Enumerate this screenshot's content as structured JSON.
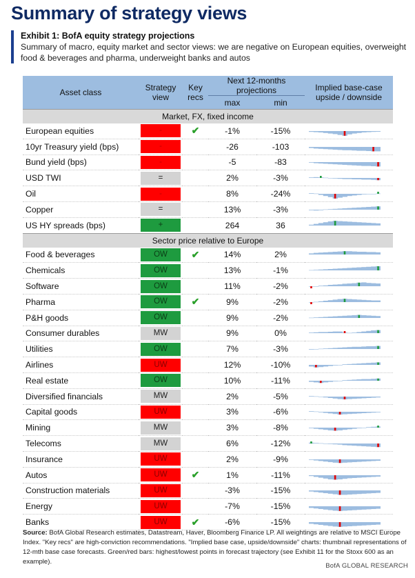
{
  "title": "Summary of strategy views",
  "exhibit": {
    "title": "Exhibit 1: BofA equity strategy projections",
    "subtitle": "Summary of macro, equity market and sector views: we are negative on European equities, overweight food & beverages and pharma, underweight banks and autos"
  },
  "headers": {
    "asset": "Asset class",
    "view": "Strategy view",
    "key": "Key recs",
    "proj": "Next 12-months projections",
    "max": "max",
    "min": "min",
    "chart": "Implied base-case upside / downside"
  },
  "sections": [
    {
      "label": "Market, FX, fixed income",
      "rows": [
        {
          "asset": "European equities",
          "view": "-",
          "view_color": "red",
          "key": true,
          "max": "-1%",
          "min": "-15%",
          "spark": {
            "vals": [
              -0.15,
              -0.2,
              -0.25,
              -0.35,
              -0.45,
              -0.55,
              -0.7,
              -0.85,
              -0.6,
              -0.45,
              -0.35,
              -0.25,
              -0.2,
              -0.15,
              -0.12
            ],
            "mark": 7,
            "mark_color": "red"
          }
        },
        {
          "asset": "10yr Treasury yield (bps)",
          "view": "-",
          "view_color": "red",
          "key": false,
          "max": "-26",
          "min": "-103",
          "spark": {
            "vals": [
              -0.2,
              -0.3,
              -0.35,
              -0.4,
              -0.45,
              -0.5,
              -0.55,
              -0.6,
              -0.6,
              -0.65,
              -0.7,
              -0.7,
              -0.75,
              -0.8,
              -0.8
            ],
            "mark": 13,
            "mark_color": "red"
          }
        },
        {
          "asset": "Bund yield (bps)",
          "view": "-",
          "view_color": "red",
          "key": false,
          "max": "-5",
          "min": "-83",
          "spark": {
            "vals": [
              -0.1,
              -0.2,
              -0.25,
              -0.3,
              -0.35,
              -0.4,
              -0.45,
              -0.5,
              -0.55,
              -0.6,
              -0.65,
              -0.7,
              -0.7,
              -0.75,
              -0.8
            ],
            "mark": 14,
            "mark_color": "red"
          }
        },
        {
          "asset": "USD TWI",
          "view": "=",
          "view_color": "grey",
          "key": false,
          "max": "2%",
          "min": "-3%",
          "spark": {
            "vals": [
              0.1,
              0.15,
              0.1,
              0.05,
              -0.05,
              -0.1,
              -0.15,
              -0.2,
              -0.2,
              -0.25,
              -0.25,
              -0.3,
              -0.3,
              -0.35,
              -0.4
            ],
            "mark": 14,
            "mark_color": "red",
            "mark2": 2,
            "mark2_color": "green"
          }
        },
        {
          "asset": "Oil",
          "view": "-",
          "view_color": "red",
          "key": false,
          "max": "8%",
          "min": "-24%",
          "spark": {
            "vals": [
              0.1,
              0.05,
              -0.2,
              -0.4,
              -0.6,
              -0.85,
              -0.7,
              -0.55,
              -0.4,
              -0.3,
              -0.2,
              -0.1,
              -0.05,
              0.0,
              0.05
            ],
            "mark": 5,
            "mark_color": "red",
            "mark2": 14,
            "mark2_color": "green"
          }
        },
        {
          "asset": "Copper",
          "view": "=",
          "view_color": "grey",
          "key": false,
          "max": "13%",
          "min": "-3%",
          "spark": {
            "vals": [
              -0.1,
              -0.15,
              -0.1,
              0.05,
              0.1,
              0.15,
              0.2,
              0.25,
              0.3,
              0.35,
              0.4,
              0.45,
              0.5,
              0.55,
              0.6
            ],
            "mark": 14,
            "mark_color": "green"
          }
        },
        {
          "asset": "US HY spreads (bps)",
          "view": "+",
          "view_color": "green",
          "key": false,
          "max": "264",
          "min": "36",
          "spark": {
            "vals": [
              0.15,
              0.3,
              0.45,
              0.6,
              0.75,
              0.85,
              0.8,
              0.75,
              0.7,
              0.65,
              0.6,
              0.55,
              0.5,
              0.45,
              0.4
            ],
            "mark": 5,
            "mark_color": "green"
          }
        }
      ]
    },
    {
      "label": "Sector price relative to Europe",
      "rows": [
        {
          "asset": "Food & beverages",
          "view": "OW",
          "view_color": "green",
          "key": true,
          "max": "14%",
          "min": "2%",
          "spark": {
            "vals": [
              0.2,
              0.3,
              0.35,
              0.4,
              0.45,
              0.5,
              0.55,
              0.6,
              0.6,
              0.55,
              0.5,
              0.5,
              0.45,
              0.45,
              0.4
            ],
            "mark": 7,
            "mark_color": "green"
          }
        },
        {
          "asset": "Chemicals",
          "view": "OW",
          "view_color": "green",
          "key": false,
          "max": "13%",
          "min": "-1%",
          "spark": {
            "vals": [
              0.05,
              0.1,
              0.15,
              0.2,
              0.25,
              0.3,
              0.35,
              0.4,
              0.45,
              0.5,
              0.55,
              0.6,
              0.65,
              0.7,
              0.75
            ],
            "mark": 14,
            "mark_color": "green"
          }
        },
        {
          "asset": "Software",
          "view": "OW",
          "view_color": "green",
          "key": false,
          "max": "11%",
          "min": "-2%",
          "spark": {
            "vals": [
              -0.05,
              0.0,
              0.1,
              0.15,
              0.25,
              0.3,
              0.35,
              0.45,
              0.5,
              0.55,
              0.65,
              0.7,
              0.6,
              0.55,
              0.5
            ],
            "mark": 10,
            "mark_color": "green",
            "mark2": 0,
            "mark2_color": "red"
          }
        },
        {
          "asset": "Pharma",
          "view": "OW",
          "view_color": "green",
          "key": true,
          "max": "9%",
          "min": "-2%",
          "spark": {
            "vals": [
              -0.05,
              0.05,
              0.15,
              0.25,
              0.35,
              0.45,
              0.55,
              0.6,
              0.55,
              0.5,
              0.45,
              0.4,
              0.35,
              0.3,
              0.3
            ],
            "mark": 7,
            "mark_color": "green",
            "mark2": 0,
            "mark2_color": "red"
          }
        },
        {
          "asset": "P&H goods",
          "view": "OW",
          "view_color": "green",
          "key": false,
          "max": "9%",
          "min": "-2%",
          "spark": {
            "vals": [
              0.05,
              0.1,
              0.15,
              0.2,
              0.25,
              0.3,
              0.35,
              0.4,
              0.45,
              0.5,
              0.55,
              0.5,
              0.45,
              0.4,
              0.35
            ],
            "mark": 10,
            "mark_color": "green"
          }
        },
        {
          "asset": "Consumer durables",
          "view": "MW",
          "view_color": "grey",
          "key": false,
          "max": "9%",
          "min": "0%",
          "spark": {
            "vals": [
              0.1,
              0.15,
              0.2,
              0.2,
              0.25,
              0.3,
              0.3,
              0.1,
              0.05,
              0.1,
              0.2,
              0.3,
              0.4,
              0.5,
              0.55
            ],
            "mark": 14,
            "mark_color": "green",
            "mark2": 7,
            "mark2_color": "red"
          }
        },
        {
          "asset": "Utilities",
          "view": "OW",
          "view_color": "green",
          "key": false,
          "max": "7%",
          "min": "-3%",
          "spark": {
            "vals": [
              -0.1,
              -0.05,
              0.05,
              0.1,
              0.15,
              0.2,
              0.25,
              0.3,
              0.35,
              0.4,
              0.4,
              0.45,
              0.5,
              0.5,
              0.55
            ],
            "mark": 14,
            "mark_color": "green"
          }
        },
        {
          "asset": "Airlines",
          "view": "UW",
          "view_color": "red",
          "key": false,
          "max": "12%",
          "min": "-10%",
          "spark": {
            "vals": [
              -0.3,
              -0.45,
              -0.4,
              -0.3,
              -0.2,
              -0.1,
              0.0,
              0.1,
              0.15,
              0.2,
              0.25,
              0.3,
              0.35,
              0.4,
              0.45
            ],
            "mark": 1,
            "mark_color": "red",
            "mark2": 14,
            "mark2_color": "green"
          }
        },
        {
          "asset": "Real estate",
          "view": "OW",
          "view_color": "green",
          "key": false,
          "max": "10%",
          "min": "-11%",
          "spark": {
            "vals": [
              -0.2,
              -0.3,
              -0.4,
              -0.3,
              -0.2,
              -0.1,
              0.0,
              0.1,
              0.15,
              0.2,
              0.25,
              0.3,
              0.3,
              0.35,
              0.4
            ],
            "mark": 2,
            "mark_color": "red",
            "mark2": 14,
            "mark2_color": "green"
          }
        },
        {
          "asset": "Diversified financials",
          "view": "MW",
          "view_color": "grey",
          "key": false,
          "max": "2%",
          "min": "-5%",
          "spark": {
            "vals": [
              0.1,
              0.05,
              -0.05,
              -0.15,
              -0.25,
              -0.35,
              -0.45,
              -0.5,
              -0.45,
              -0.4,
              -0.35,
              -0.3,
              -0.25,
              -0.2,
              -0.15
            ],
            "mark": 7,
            "mark_color": "red"
          }
        },
        {
          "asset": "Capital goods",
          "view": "UW",
          "view_color": "red",
          "key": false,
          "max": "3%",
          "min": "-6%",
          "spark": {
            "vals": [
              0.1,
              0.05,
              -0.1,
              -0.2,
              -0.3,
              -0.4,
              -0.5,
              -0.45,
              -0.4,
              -0.35,
              -0.3,
              -0.25,
              -0.2,
              -0.15,
              -0.1
            ],
            "mark": 6,
            "mark_color": "red"
          }
        },
        {
          "asset": "Mining",
          "view": "MW",
          "view_color": "grey",
          "key": false,
          "max": "3%",
          "min": "-8%",
          "spark": {
            "vals": [
              -0.1,
              -0.2,
              -0.3,
              -0.4,
              -0.5,
              -0.55,
              -0.5,
              -0.4,
              -0.3,
              -0.2,
              -0.1,
              0.0,
              0.1,
              0.15,
              0.2
            ],
            "mark": 5,
            "mark_color": "red",
            "mark2": 14,
            "mark2_color": "green"
          }
        },
        {
          "asset": "Telecoms",
          "view": "MW",
          "view_color": "grey",
          "key": false,
          "max": "6%",
          "min": "-12%",
          "spark": {
            "vals": [
              0.15,
              0.1,
              0.05,
              -0.05,
              -0.1,
              -0.15,
              -0.2,
              -0.3,
              -0.35,
              -0.4,
              -0.45,
              -0.5,
              -0.55,
              -0.6,
              -0.65
            ],
            "mark": 14,
            "mark_color": "red",
            "mark2": 0,
            "mark2_color": "green"
          }
        },
        {
          "asset": "Insurance",
          "view": "UW",
          "view_color": "red",
          "key": false,
          "max": "2%",
          "min": "-9%",
          "spark": {
            "vals": [
              -0.1,
              -0.2,
              -0.3,
              -0.4,
              -0.5,
              -0.6,
              -0.65,
              -0.6,
              -0.55,
              -0.5,
              -0.45,
              -0.4,
              -0.35,
              -0.3,
              -0.25
            ],
            "mark": 6,
            "mark_color": "red"
          }
        },
        {
          "asset": "Autos",
          "view": "UW",
          "view_color": "red",
          "key": true,
          "max": "1%",
          "min": "-11%",
          "spark": {
            "vals": [
              -0.15,
              -0.3,
              -0.45,
              -0.6,
              -0.75,
              -0.8,
              -0.75,
              -0.65,
              -0.55,
              -0.5,
              -0.45,
              -0.4,
              -0.35,
              -0.3,
              -0.25
            ],
            "mark": 5,
            "mark_color": "red"
          }
        },
        {
          "asset": "Construction materials",
          "view": "UW",
          "view_color": "red",
          "key": false,
          "max": "-3%",
          "min": "-15%",
          "spark": {
            "vals": [
              -0.2,
              -0.3,
              -0.4,
              -0.5,
              -0.6,
              -0.7,
              -0.8,
              -0.8,
              -0.75,
              -0.7,
              -0.65,
              -0.6,
              -0.55,
              -0.5,
              -0.45
            ],
            "mark": 6,
            "mark_color": "red"
          }
        },
        {
          "asset": "Energy",
          "view": "UW",
          "view_color": "red",
          "key": false,
          "max": "-7%",
          "min": "-15%",
          "spark": {
            "vals": [
              -0.3,
              -0.4,
              -0.5,
              -0.6,
              -0.7,
              -0.8,
              -0.85,
              -0.8,
              -0.75,
              -0.7,
              -0.65,
              -0.6,
              -0.55,
              -0.5,
              -0.45
            ],
            "mark": 6,
            "mark_color": "red"
          }
        },
        {
          "asset": "Banks",
          "view": "UW",
          "view_color": "red",
          "key": true,
          "max": "-6%",
          "min": "-15%",
          "spark": {
            "vals": [
              -0.3,
              -0.4,
              -0.5,
              -0.6,
              -0.7,
              -0.8,
              -0.85,
              -0.8,
              -0.75,
              -0.7,
              -0.65,
              -0.6,
              -0.55,
              -0.5,
              -0.45
            ],
            "mark": 6,
            "mark_color": "red"
          }
        }
      ]
    }
  ],
  "footnote": {
    "source_label": "Source:",
    "text": " BofA Global Research estimates, Datastream, Haver, Bloomberg Finance LP. All weightings are relative to MSCI Europe Index. \"Key recs\" are high-conviction recommendations. \"Implied base case, upside/downside\" charts: thumbnail representations of 12-mth base case forecasts. Green/red bars: highest/lowest points in forecast trajectory (see Exhibit 11 for the Stoxx 600 as an example)."
  },
  "brand": "BofA GLOBAL RESEARCH",
  "colors": {
    "title": "#0f2a63",
    "header_bg": "#9dbde0",
    "section_bg": "#d9d9d9",
    "red": "#ff0000",
    "green": "#1e9b3f",
    "grey": "#d3d3d3",
    "spark": "#9dbde0"
  }
}
